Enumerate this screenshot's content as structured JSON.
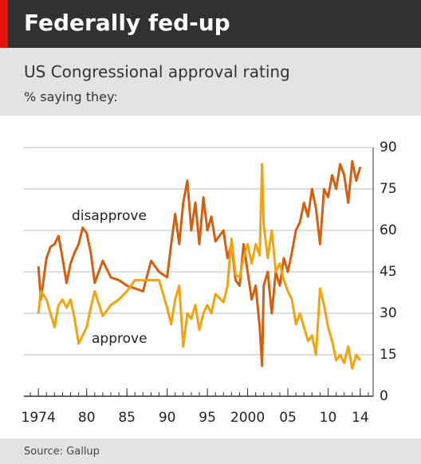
{
  "chart_data": {
    "type": "line",
    "title": "Federally fed-up",
    "subtitle": "US Congressional approval rating",
    "unit_note": "% saying they:",
    "source": "Source: Gallup",
    "x": [
      1974,
      1974.3,
      1975,
      1975.5,
      1976,
      1976.5,
      1977,
      1977.5,
      1978,
      1978.5,
      1979,
      1979.5,
      1980,
      1980.5,
      1981,
      1982,
      1983,
      1984,
      1985,
      1986,
      1987,
      1988,
      1989,
      1990,
      1990.5,
      1991,
      1991.5,
      1992,
      1992.5,
      1993,
      1993.5,
      1994,
      1994.5,
      1995,
      1995.5,
      1996,
      1997,
      1997.5,
      1998,
      1998.5,
      1999,
      1999.5,
      2000,
      2000.5,
      2001,
      2001.5,
      2001.8,
      2002,
      2002.5,
      2003,
      2003.5,
      2004,
      2004.5,
      2005,
      2005.5,
      2006,
      2006.5,
      2007,
      2007.5,
      2008,
      2008.5,
      2009,
      2009.5,
      2010,
      2010.5,
      2011,
      2011.5,
      2012,
      2012.5,
      2013,
      2013.5,
      2014
    ],
    "series": [
      {
        "name": "disapprove",
        "color": "#d35f0f",
        "values": [
          47,
          35,
          50,
          54,
          55,
          58,
          50,
          41,
          48,
          52,
          55,
          61,
          59,
          52,
          41,
          49,
          43,
          42,
          40,
          39,
          38,
          49,
          45,
          43,
          55,
          66,
          55,
          70,
          78,
          60,
          70,
          55,
          72,
          60,
          65,
          56,
          60,
          50,
          55,
          42,
          40,
          55,
          45,
          35,
          40,
          25,
          11,
          40,
          45,
          30,
          45,
          40,
          50,
          45,
          52,
          60,
          63,
          70,
          65,
          75,
          68,
          55,
          75,
          72,
          80,
          75,
          84,
          80,
          70,
          85,
          78,
          83
        ]
      },
      {
        "name": "approve",
        "color": "#f2a30f",
        "values": [
          30,
          38,
          35,
          30,
          25,
          33,
          35,
          32,
          35,
          28,
          19,
          22,
          25,
          32,
          38,
          29,
          33,
          35,
          38,
          42,
          42,
          42,
          42,
          32,
          26,
          35,
          40,
          18,
          30,
          28,
          33,
          24,
          30,
          33,
          30,
          37,
          34,
          40,
          57,
          44,
          43,
          50,
          55,
          48,
          55,
          51,
          84,
          62,
          50,
          60,
          45,
          48,
          42,
          38,
          35,
          26,
          30,
          25,
          20,
          22,
          15,
          39,
          33,
          25,
          20,
          13,
          15,
          12,
          18,
          10,
          15,
          13
        ]
      }
    ],
    "xlim": [
      1972.2,
      2015.6
    ],
    "xticks": [
      1974,
      {
        "value": 1980,
        "label": "80"
      },
      {
        "value": 1985,
        "label": "85"
      },
      {
        "value": 1990,
        "label": "90"
      },
      {
        "value": 1995,
        "label": "95"
      },
      2000,
      {
        "value": 2005,
        "label": "05"
      },
      {
        "value": 2010,
        "label": "10"
      },
      {
        "value": 2014,
        "label": "14"
      }
    ],
    "ylim": [
      0,
      90
    ],
    "yticks": [
      0,
      15,
      30,
      45,
      60,
      75,
      90
    ],
    "grid": true
  }
}
